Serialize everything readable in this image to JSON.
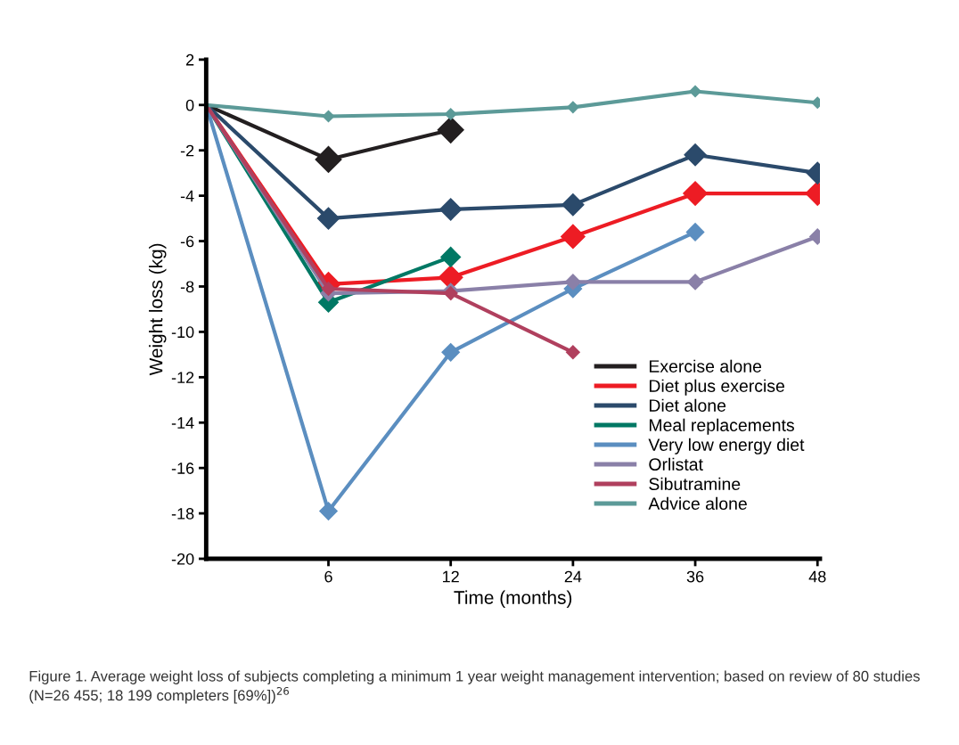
{
  "chart_data": {
    "type": "line",
    "xlabel": "Time (months)",
    "ylabel": "Weight loss (kg)",
    "categories": [
      null,
      "6",
      "12",
      "24",
      "36",
      "48"
    ],
    "ylim": [
      -20,
      2
    ],
    "yticks": [
      -20,
      -18,
      -16,
      -14,
      -12,
      -10,
      -8,
      -6,
      -4,
      -2,
      0,
      2
    ],
    "marker": "diamond",
    "line_style": "solid",
    "grid": false,
    "legend": "bottom right",
    "series": [
      {
        "name": "Exercise alone",
        "color": "#231f20",
        "values": [
          0,
          -2.4,
          -1.1,
          null,
          null,
          null
        ]
      },
      {
        "name": "Diet plus exercise",
        "color": "#ed1c24",
        "values": [
          0,
          -7.9,
          -7.6,
          -5.8,
          -3.9,
          -3.9
        ]
      },
      {
        "name": "Diet alone",
        "color": "#2b4a6b",
        "values": [
          0,
          -5.0,
          -4.6,
          -4.4,
          -2.2,
          -3.0
        ]
      },
      {
        "name": "Meal replacements",
        "color": "#007864",
        "values": [
          0,
          -8.7,
          -6.7,
          null,
          null,
          null
        ]
      },
      {
        "name": "Very low energy diet",
        "color": "#5b8ec0",
        "values": [
          0,
          -17.9,
          -10.9,
          -8.1,
          -5.6,
          null
        ]
      },
      {
        "name": "Orlistat",
        "color": "#8a80a8",
        "values": [
          0,
          -8.3,
          -8.2,
          -7.8,
          -7.8,
          -5.8
        ]
      },
      {
        "name": "Sibutramine",
        "color": "#b0405e",
        "values": [
          0,
          -8.1,
          -8.3,
          -10.9,
          null,
          null
        ]
      },
      {
        "name": "Advice alone",
        "color": "#5c9a98",
        "values": [
          0,
          -0.5,
          -0.4,
          -0.1,
          0.6,
          0.1
        ]
      }
    ],
    "annotations": [
      "Figure 1. Average weight loss of subjects completing a minimum 1 year weight management intervention; based on review of 80 studies (N=26 455; 18 199 completers [69%])$^{26}$"
    ]
  }
}
